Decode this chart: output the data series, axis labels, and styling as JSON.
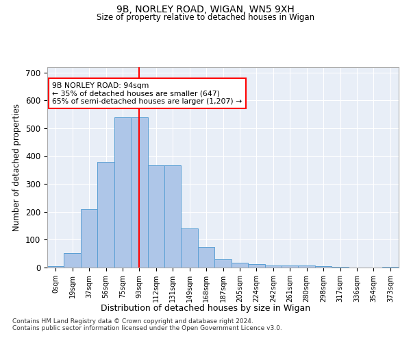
{
  "title1": "9B, NORLEY ROAD, WIGAN, WN5 9XH",
  "title2": "Size of property relative to detached houses in Wigan",
  "xlabel": "Distribution of detached houses by size in Wigan",
  "ylabel": "Number of detached properties",
  "categories": [
    "0sqm",
    "19sqm",
    "37sqm",
    "56sqm",
    "75sqm",
    "93sqm",
    "112sqm",
    "131sqm",
    "149sqm",
    "168sqm",
    "187sqm",
    "205sqm",
    "224sqm",
    "242sqm",
    "261sqm",
    "280sqm",
    "298sqm",
    "317sqm",
    "336sqm",
    "354sqm",
    "373sqm"
  ],
  "values": [
    5,
    52,
    210,
    380,
    540,
    540,
    368,
    368,
    140,
    75,
    30,
    17,
    12,
    8,
    8,
    8,
    5,
    2,
    0,
    0,
    2
  ],
  "bar_color": "#aec6e8",
  "bar_edge_color": "#5a9fd4",
  "red_line_x": 5.0,
  "annotation_text": "9B NORLEY ROAD: 94sqm\n← 35% of detached houses are smaller (647)\n65% of semi-detached houses are larger (1,207) →",
  "annotation_box_facecolor": "white",
  "annotation_box_edgecolor": "red",
  "footer1": "Contains HM Land Registry data © Crown copyright and database right 2024.",
  "footer2": "Contains public sector information licensed under the Open Government Licence v3.0.",
  "plot_bg_color": "#e8eef7",
  "ylim": [
    0,
    720
  ],
  "yticks": [
    0,
    100,
    200,
    300,
    400,
    500,
    600,
    700
  ]
}
